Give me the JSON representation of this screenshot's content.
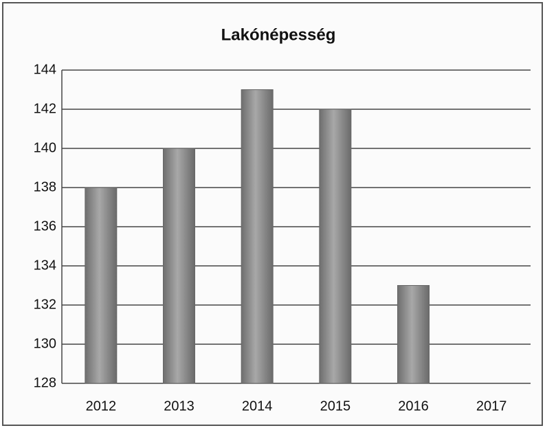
{
  "chart_data": {
    "type": "bar",
    "title": "Lakónépesség",
    "categories": [
      "2012",
      "2013",
      "2014",
      "2015",
      "2016",
      "2017"
    ],
    "values": [
      138,
      140,
      143,
      142,
      133,
      null
    ],
    "color": "#8a8a8a",
    "ylim": [
      128,
      144
    ],
    "yticks": [
      128,
      130,
      132,
      134,
      136,
      138,
      140,
      142,
      144
    ],
    "grid": true
  }
}
